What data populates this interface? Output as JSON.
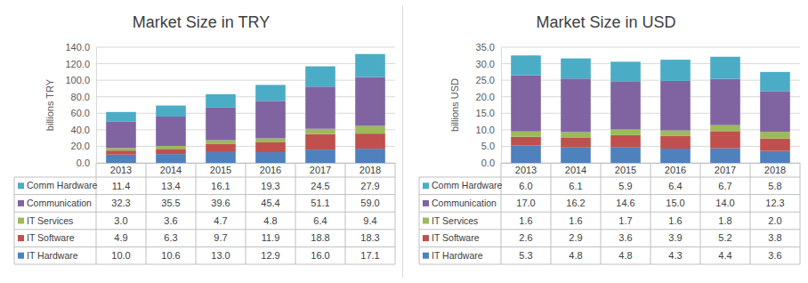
{
  "chart_data": [
    {
      "type": "bar",
      "title": "Market Size in TRY",
      "ylabel": "billions TRY",
      "stacked": true,
      "grid": true,
      "categories": [
        "2013",
        "2014",
        "2015",
        "2016",
        "2017",
        "2018"
      ],
      "ylim": [
        0,
        140
      ],
      "yticks": [
        {
          "value": 0,
          "label": "0.0"
        },
        {
          "value": 20,
          "label": "20.0"
        },
        {
          "value": 40,
          "label": "40.0"
        },
        {
          "value": 60,
          "label": "60.0"
        },
        {
          "value": 80,
          "label": "80.0"
        },
        {
          "value": 100,
          "label": "100.0"
        },
        {
          "value": 120,
          "label": "120.0"
        },
        {
          "value": 140,
          "label": "140.0"
        }
      ],
      "series": [
        {
          "name": "IT Hardware",
          "color": "#4f81bd",
          "values": [
            10.0,
            10.6,
            13.0,
            12.9,
            16.0,
            17.1
          ],
          "value_labels": [
            "10.0",
            "10.6",
            "13.0",
            "12.9",
            "16.0",
            "17.1"
          ]
        },
        {
          "name": "IT Software",
          "color": "#c0504d",
          "values": [
            4.9,
            6.3,
            9.7,
            11.9,
            18.8,
            18.3
          ],
          "value_labels": [
            "4.9",
            "6.3",
            "9.7",
            "11.9",
            "18.8",
            "18.3"
          ]
        },
        {
          "name": "IT Services",
          "color": "#9bbb59",
          "values": [
            3.0,
            3.6,
            4.7,
            4.8,
            6.4,
            9.4
          ],
          "value_labels": [
            "3.0",
            "3.6",
            "4.7",
            "4.8",
            "6.4",
            "9.4"
          ]
        },
        {
          "name": "Communication",
          "color": "#8064a2",
          "values": [
            32.3,
            35.5,
            39.6,
            45.4,
            51.1,
            59.0
          ],
          "value_labels": [
            "32.3",
            "35.5",
            "39.6",
            "45.4",
            "51.1",
            "59.0"
          ]
        },
        {
          "name": "Comm Hardware",
          "color": "#4bacc6",
          "values": [
            11.4,
            13.4,
            16.1,
            19.3,
            24.5,
            27.9
          ],
          "value_labels": [
            "11.4",
            "13.4",
            "16.1",
            "19.3",
            "24.5",
            "27.9"
          ]
        }
      ]
    },
    {
      "type": "bar",
      "title": "Market Size in USD",
      "ylabel": "billions USD",
      "stacked": true,
      "grid": true,
      "categories": [
        "2013",
        "2014",
        "2015",
        "2016",
        "2017",
        "2018"
      ],
      "ylim": [
        0,
        35
      ],
      "yticks": [
        {
          "value": 0,
          "label": "0.0"
        },
        {
          "value": 5,
          "label": "5.0"
        },
        {
          "value": 10,
          "label": "10.0"
        },
        {
          "value": 15,
          "label": "15.0"
        },
        {
          "value": 20,
          "label": "20.0"
        },
        {
          "value": 25,
          "label": "25.0"
        },
        {
          "value": 30,
          "label": "30.0"
        },
        {
          "value": 35,
          "label": "35.0"
        }
      ],
      "series": [
        {
          "name": "IT Hardware",
          "color": "#4f81bd",
          "values": [
            5.3,
            4.8,
            4.8,
            4.3,
            4.4,
            3.6
          ],
          "value_labels": [
            "5.3",
            "4.8",
            "4.8",
            "4.3",
            "4.4",
            "3.6"
          ]
        },
        {
          "name": "IT Software",
          "color": "#c0504d",
          "values": [
            2.6,
            2.9,
            3.6,
            3.9,
            5.2,
            3.8
          ],
          "value_labels": [
            "2.6",
            "2.9",
            "3.6",
            "3.9",
            "5.2",
            "3.8"
          ]
        },
        {
          "name": "IT Services",
          "color": "#9bbb59",
          "values": [
            1.6,
            1.6,
            1.7,
            1.6,
            1.8,
            2.0
          ],
          "value_labels": [
            "1.6",
            "1.6",
            "1.7",
            "1.6",
            "1.8",
            "2.0"
          ]
        },
        {
          "name": "Communication",
          "color": "#8064a2",
          "values": [
            17.0,
            16.2,
            14.6,
            15.0,
            14.0,
            12.3
          ],
          "value_labels": [
            "17.0",
            "16.2",
            "14.6",
            "15.0",
            "14.0",
            "12.3"
          ]
        },
        {
          "name": "Comm Hardware",
          "color": "#4bacc6",
          "values": [
            6.0,
            6.1,
            5.9,
            6.4,
            6.7,
            5.8
          ],
          "value_labels": [
            "6.0",
            "6.1",
            "5.9",
            "6.4",
            "6.7",
            "5.8"
          ]
        }
      ]
    }
  ]
}
